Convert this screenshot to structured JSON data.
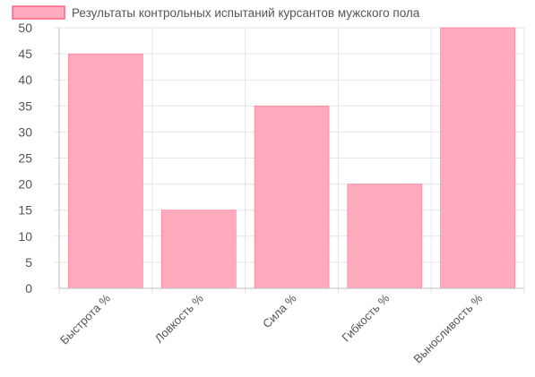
{
  "chart_data": {
    "type": "bar",
    "legend": {
      "label": "Результаты контрольных испытаний курсантов мужского пола",
      "placement": "top"
    },
    "categories": [
      "Быстрота %",
      "Ловкость %",
      "Сила %",
      "Гибкость %",
      "Выносливость %"
    ],
    "series": [
      {
        "name": "Результаты контрольных испытаний курсантов мужского пола",
        "values": [
          45,
          15,
          35,
          20,
          50
        ]
      }
    ],
    "ylim": [
      0,
      50
    ],
    "yticks": [
      0,
      5,
      10,
      15,
      20,
      25,
      30,
      35,
      40,
      45,
      50
    ],
    "grid": true,
    "colors": {
      "bar_fill": "#ffabbd",
      "bar_stroke": "#ff6384",
      "grid": "#e6e6e6",
      "axis": "#bdbdbd"
    }
  }
}
